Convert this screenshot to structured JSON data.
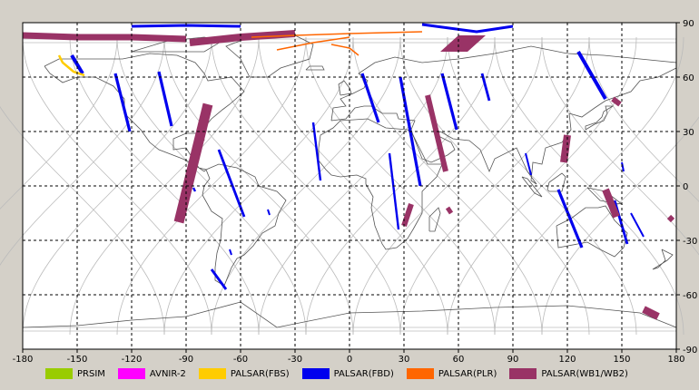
{
  "x_ticks": [
    "-180",
    "-150",
    "-120",
    "-90",
    "-60",
    "-30",
    "0",
    "30",
    "60",
    "90",
    "120",
    "150",
    "180"
  ],
  "y_ticks": [
    "90",
    "60",
    "30",
    "0",
    "-30",
    "-60",
    "-90"
  ],
  "legend": [
    {
      "label": "PRSIM",
      "color": "#99cc00"
    },
    {
      "label": "AVNIR-2",
      "color": "#ff00ff"
    },
    {
      "label": "PALSAR(FBS)",
      "color": "#ffcc00"
    },
    {
      "label": "PALSAR(FBD)",
      "color": "#0000ee"
    },
    {
      "label": "PALSAR(PLR)",
      "color": "#ff6600"
    },
    {
      "label": "PALSAR(WB1/WB2)",
      "color": "#993366"
    }
  ],
  "map": {
    "lon_range": [
      -180,
      180
    ],
    "lat_range": [
      -90,
      90
    ],
    "background": "#ffffff",
    "grid_color": "#000000",
    "coast_color": "#555555",
    "orbit_color": "#bbbbbb",
    "projection": "equirectangular"
  }
}
